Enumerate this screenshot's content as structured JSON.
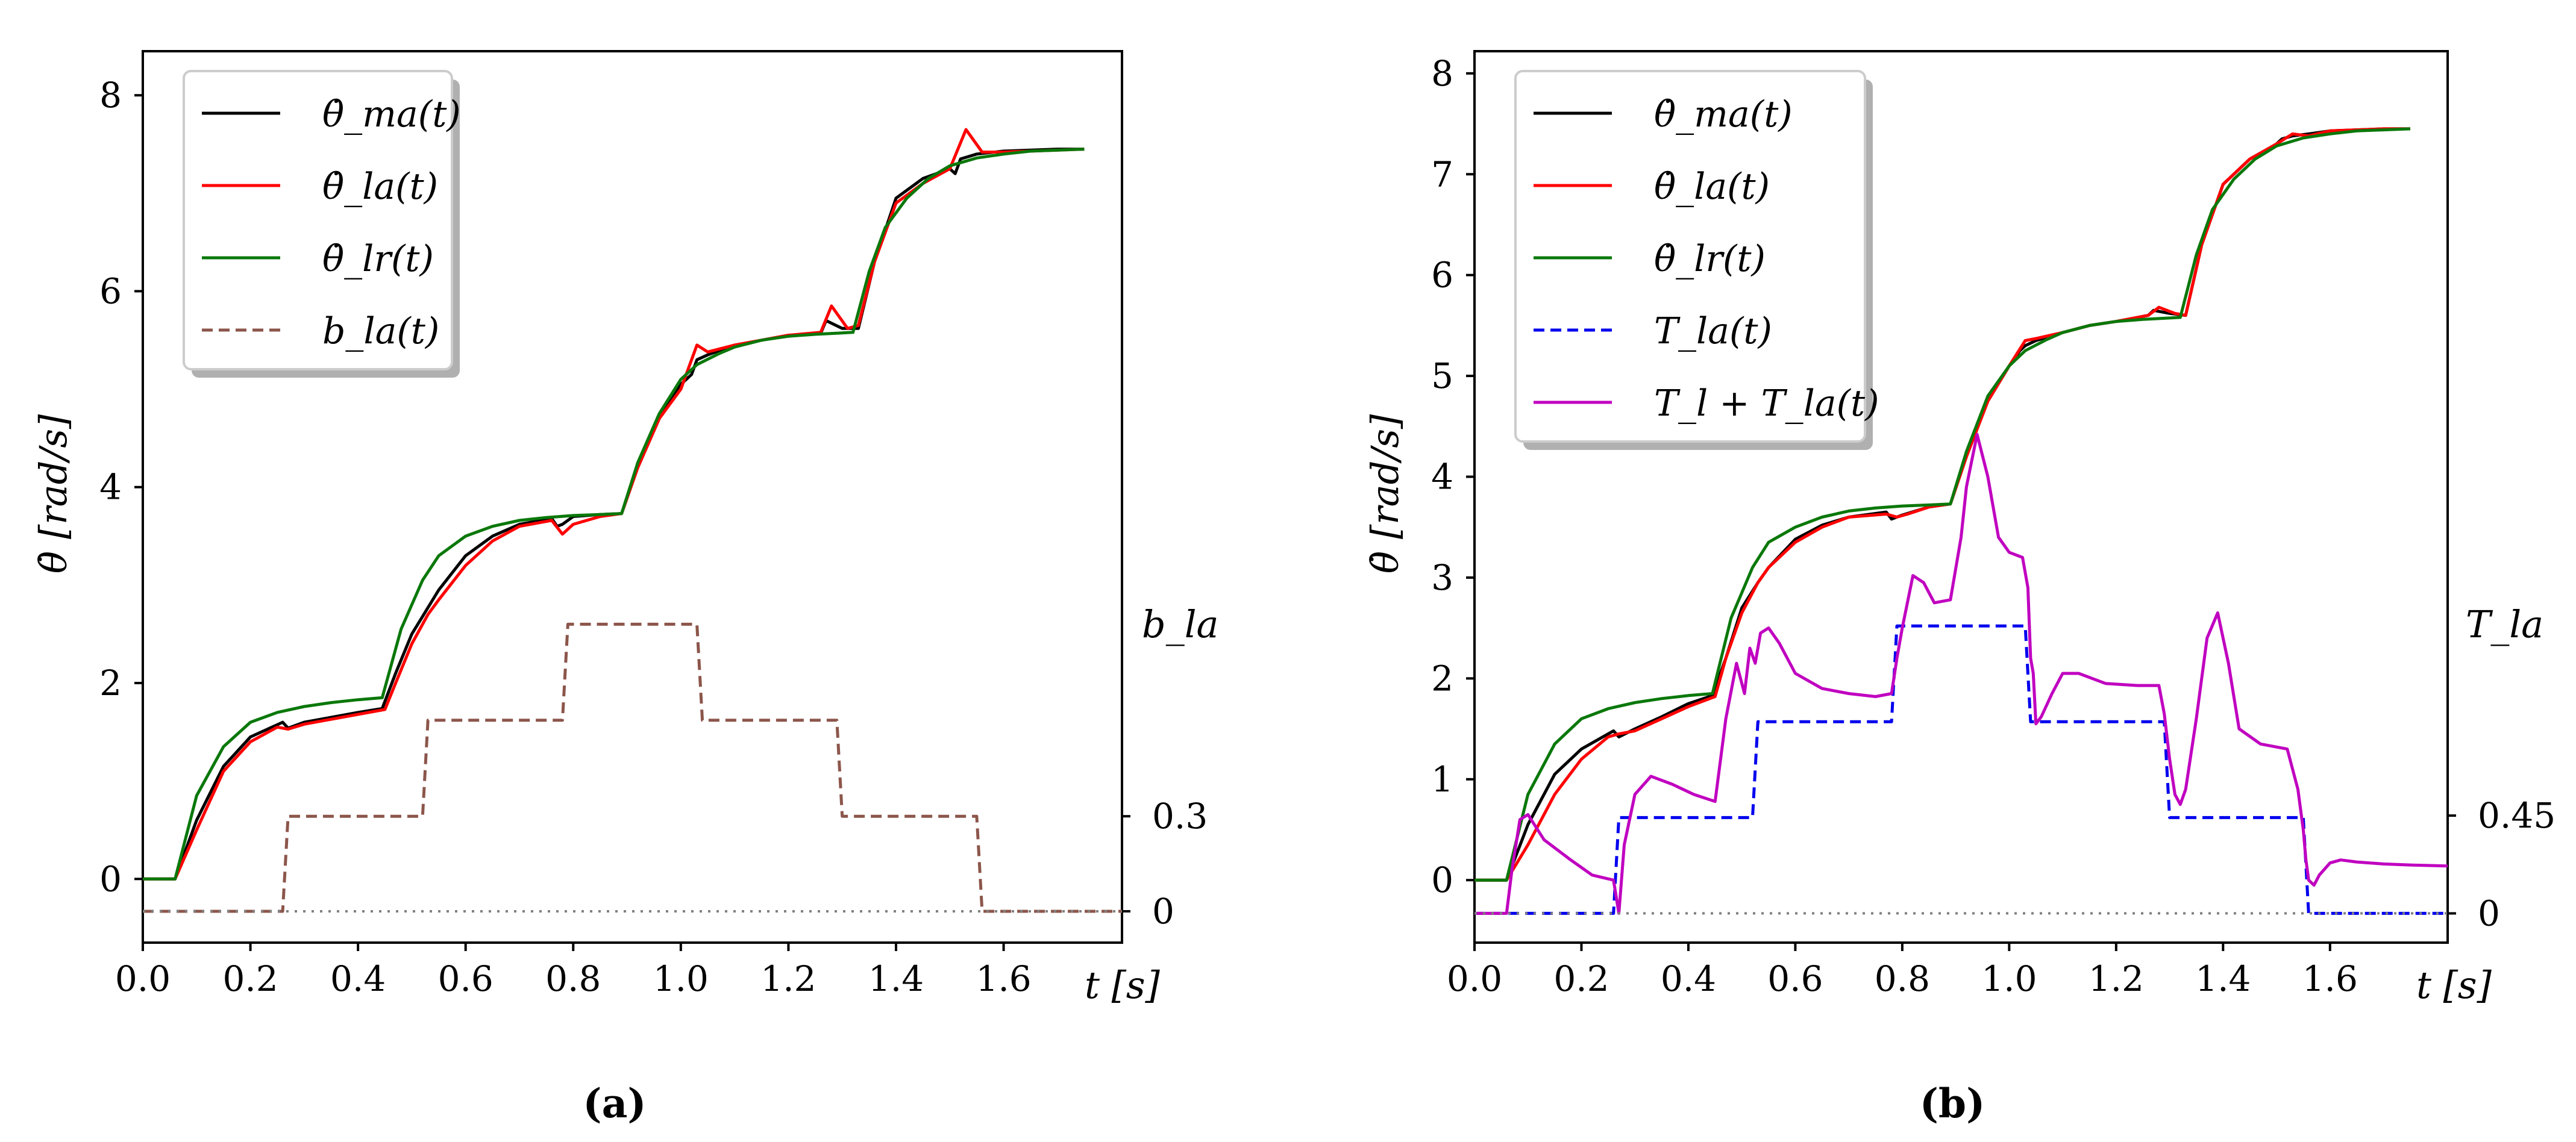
{
  "chart_data": [
    {
      "panel": "a",
      "caption": "(a)",
      "type": "line",
      "xlabel": "t [s]",
      "ylabel": "θ̇ [rad/s]",
      "xlim": [
        0.0,
        1.82
      ],
      "ylim": [
        -0.65,
        8.45
      ],
      "x_ticks": [
        "0.0",
        "0.2",
        "0.4",
        "0.6",
        "0.8",
        "1.0",
        "1.2",
        "1.4",
        "1.6"
      ],
      "y_ticks": [
        "0",
        "2",
        "4",
        "6",
        "8"
      ],
      "right_axis": {
        "label": "b_la",
        "ticks": [
          "0",
          "0.3"
        ],
        "zero_at_left": -0.33,
        "scale": 1.65
      },
      "legend": {
        "position": "top-left",
        "entries": [
          "θ̇_ma(t)",
          "θ̇_la(t)",
          "θ̇_lr(t)",
          "b_la(t)"
        ]
      },
      "series": [
        {
          "name": "θ̇_ma(t)",
          "color": "#000000",
          "style": "solid",
          "x": [
            0.0,
            0.06,
            0.1,
            0.15,
            0.2,
            0.26,
            0.27,
            0.3,
            0.35,
            0.4,
            0.445,
            0.47,
            0.5,
            0.52,
            0.55,
            0.6,
            0.65,
            0.7,
            0.76,
            0.77,
            0.78,
            0.8,
            0.85,
            0.89,
            0.92,
            0.96,
            1.0,
            1.02,
            1.03,
            1.05,
            1.1,
            1.15,
            1.2,
            1.26,
            1.27,
            1.3,
            1.33,
            1.36,
            1.4,
            1.45,
            1.5,
            1.51,
            1.52,
            1.55,
            1.6,
            1.65,
            1.7,
            1.75
          ],
          "y": [
            0.0,
            0.0,
            0.6,
            1.15,
            1.45,
            1.6,
            1.54,
            1.6,
            1.65,
            1.7,
            1.74,
            2.1,
            2.5,
            2.68,
            2.95,
            3.3,
            3.5,
            3.62,
            3.68,
            3.6,
            3.62,
            3.7,
            3.72,
            3.73,
            4.2,
            4.7,
            5.05,
            5.15,
            5.3,
            5.35,
            5.45,
            5.5,
            5.55,
            5.57,
            5.7,
            5.62,
            5.62,
            6.3,
            6.95,
            7.15,
            7.25,
            7.2,
            7.35,
            7.4,
            7.43,
            7.44,
            7.45,
            7.45
          ]
        },
        {
          "name": "θ̇_la(t)",
          "color": "#ff0000",
          "style": "solid",
          "x": [
            0.0,
            0.06,
            0.1,
            0.15,
            0.2,
            0.25,
            0.27,
            0.3,
            0.35,
            0.4,
            0.45,
            0.47,
            0.5,
            0.53,
            0.55,
            0.6,
            0.65,
            0.7,
            0.76,
            0.78,
            0.8,
            0.85,
            0.89,
            0.92,
            0.96,
            1.0,
            1.03,
            1.05,
            1.1,
            1.15,
            1.2,
            1.26,
            1.28,
            1.31,
            1.33,
            1.36,
            1.4,
            1.45,
            1.5,
            1.53,
            1.56,
            1.6,
            1.65,
            1.7,
            1.75
          ],
          "y": [
            0.0,
            0.0,
            0.5,
            1.1,
            1.4,
            1.55,
            1.53,
            1.58,
            1.63,
            1.68,
            1.73,
            2.0,
            2.4,
            2.7,
            2.85,
            3.2,
            3.45,
            3.6,
            3.66,
            3.52,
            3.62,
            3.7,
            3.73,
            4.2,
            4.7,
            5.0,
            5.45,
            5.38,
            5.45,
            5.5,
            5.55,
            5.58,
            5.85,
            5.62,
            5.65,
            6.3,
            6.9,
            7.1,
            7.25,
            7.65,
            7.42,
            7.42,
            7.43,
            7.44,
            7.45
          ]
        },
        {
          "name": "θ̇_lr(t)",
          "color": "#0a780a",
          "style": "solid",
          "x": [
            0.0,
            0.06,
            0.1,
            0.15,
            0.2,
            0.25,
            0.3,
            0.35,
            0.4,
            0.445,
            0.48,
            0.52,
            0.55,
            0.6,
            0.65,
            0.7,
            0.75,
            0.8,
            0.85,
            0.89,
            0.92,
            0.96,
            1.0,
            1.03,
            1.07,
            1.1,
            1.15,
            1.2,
            1.25,
            1.32,
            1.35,
            1.38,
            1.42,
            1.46,
            1.5,
            1.55,
            1.6,
            1.65,
            1.7,
            1.75
          ],
          "y": [
            0.0,
            0.0,
            0.85,
            1.35,
            1.6,
            1.7,
            1.76,
            1.8,
            1.83,
            1.85,
            2.55,
            3.05,
            3.3,
            3.5,
            3.6,
            3.66,
            3.69,
            3.71,
            3.72,
            3.73,
            4.25,
            4.75,
            5.1,
            5.25,
            5.36,
            5.43,
            5.5,
            5.54,
            5.56,
            5.58,
            6.2,
            6.65,
            6.95,
            7.15,
            7.28,
            7.36,
            7.4,
            7.43,
            7.44,
            7.45
          ]
        },
        {
          "name": "b_la(t)",
          "color": "#8c564b",
          "style": "dashed",
          "x": [
            0.0,
            0.26,
            0.27,
            0.52,
            0.53,
            0.78,
            0.79,
            1.03,
            1.04,
            1.29,
            1.3,
            1.55,
            1.56,
            1.82
          ],
          "y": [
            -0.33,
            -0.33,
            0.64,
            0.64,
            1.62,
            1.62,
            2.6,
            2.6,
            1.62,
            1.62,
            0.64,
            0.64,
            -0.33,
            -0.33
          ]
        },
        {
          "name": "zero-ref",
          "color": "#808080",
          "style": "dotted",
          "x": [
            0.0,
            1.82
          ],
          "y": [
            -0.33,
            -0.33
          ]
        }
      ]
    },
    {
      "panel": "b",
      "caption": "(b)",
      "type": "line",
      "xlabel": "t [s]",
      "ylabel": "θ̇ [rad/s]",
      "xlim": [
        0.0,
        1.82
      ],
      "ylim": [
        -0.62,
        8.22
      ],
      "x_ticks": [
        "0.0",
        "0.2",
        "0.4",
        "0.6",
        "0.8",
        "1.0",
        "1.2",
        "1.4",
        "1.6"
      ],
      "y_ticks": [
        "0",
        "1",
        "2",
        "3",
        "4",
        "5",
        "6",
        "7",
        "8"
      ],
      "right_axis": {
        "label": "T_la",
        "ticks": [
          "0",
          "0.45"
        ],
        "zero_at_left": -0.33,
        "scale": 1.1
      },
      "legend": {
        "position": "top-left",
        "entries": [
          "θ̇_ma(t)",
          "θ̇_la(t)",
          "θ̇_lr(t)",
          "T_la(t)",
          "T_l + T_la(t)"
        ]
      },
      "series": [
        {
          "name": "θ̇_ma(t)",
          "color": "#000000",
          "style": "solid",
          "x": [
            0.0,
            0.06,
            0.1,
            0.15,
            0.2,
            0.26,
            0.27,
            0.3,
            0.35,
            0.4,
            0.445,
            0.47,
            0.5,
            0.53,
            0.55,
            0.6,
            0.65,
            0.7,
            0.77,
            0.78,
            0.8,
            0.85,
            0.89,
            0.92,
            0.96,
            1.0,
            1.02,
            1.03,
            1.05,
            1.1,
            1.15,
            1.2,
            1.26,
            1.27,
            1.3,
            1.33,
            1.36,
            1.4,
            1.45,
            1.5,
            1.51,
            1.53,
            1.56,
            1.6,
            1.65,
            1.7,
            1.75
          ],
          "y": [
            0.0,
            0.0,
            0.55,
            1.05,
            1.3,
            1.48,
            1.42,
            1.5,
            1.62,
            1.75,
            1.83,
            2.2,
            2.7,
            2.95,
            3.1,
            3.38,
            3.52,
            3.6,
            3.65,
            3.58,
            3.62,
            3.7,
            3.73,
            4.2,
            4.75,
            5.1,
            5.25,
            5.3,
            5.35,
            5.43,
            5.5,
            5.54,
            5.6,
            5.65,
            5.62,
            5.6,
            6.3,
            6.9,
            7.15,
            7.3,
            7.35,
            7.38,
            7.4,
            7.43,
            7.44,
            7.45,
            7.45
          ]
        },
        {
          "name": "θ̇_la(t)",
          "color": "#ff0000",
          "style": "solid",
          "x": [
            0.0,
            0.06,
            0.1,
            0.15,
            0.2,
            0.25,
            0.27,
            0.3,
            0.35,
            0.4,
            0.45,
            0.47,
            0.5,
            0.53,
            0.55,
            0.6,
            0.65,
            0.7,
            0.77,
            0.79,
            0.81,
            0.85,
            0.89,
            0.92,
            0.96,
            1.0,
            1.03,
            1.05,
            1.1,
            1.15,
            1.2,
            1.26,
            1.28,
            1.31,
            1.33,
            1.36,
            1.4,
            1.45,
            1.5,
            1.53,
            1.56,
            1.6,
            1.65,
            1.7,
            1.75
          ],
          "y": [
            0.0,
            0.0,
            0.35,
            0.85,
            1.2,
            1.42,
            1.45,
            1.48,
            1.6,
            1.72,
            1.82,
            2.2,
            2.65,
            2.95,
            3.1,
            3.35,
            3.5,
            3.6,
            3.63,
            3.6,
            3.63,
            3.7,
            3.73,
            4.2,
            4.75,
            5.1,
            5.35,
            5.37,
            5.43,
            5.5,
            5.54,
            5.6,
            5.68,
            5.62,
            5.6,
            6.3,
            6.9,
            7.15,
            7.3,
            7.4,
            7.38,
            7.43,
            7.44,
            7.45,
            7.45
          ]
        },
        {
          "name": "θ̇_lr(t)",
          "color": "#0a780a",
          "style": "solid",
          "x": [
            0.0,
            0.06,
            0.1,
            0.15,
            0.2,
            0.25,
            0.3,
            0.35,
            0.4,
            0.445,
            0.48,
            0.52,
            0.55,
            0.6,
            0.65,
            0.7,
            0.75,
            0.8,
            0.85,
            0.89,
            0.92,
            0.96,
            1.0,
            1.03,
            1.07,
            1.1,
            1.15,
            1.2,
            1.25,
            1.32,
            1.35,
            1.38,
            1.42,
            1.46,
            1.5,
            1.55,
            1.6,
            1.65,
            1.7,
            1.75
          ],
          "y": [
            0.0,
            0.0,
            0.85,
            1.35,
            1.6,
            1.7,
            1.76,
            1.8,
            1.83,
            1.85,
            2.6,
            3.1,
            3.35,
            3.5,
            3.6,
            3.66,
            3.69,
            3.71,
            3.72,
            3.73,
            4.25,
            4.8,
            5.1,
            5.25,
            5.36,
            5.43,
            5.5,
            5.54,
            5.56,
            5.58,
            6.2,
            6.65,
            6.95,
            7.15,
            7.28,
            7.36,
            7.4,
            7.43,
            7.44,
            7.45
          ]
        },
        {
          "name": "T_la(t)",
          "color": "#0000ee",
          "style": "dashed",
          "x": [
            0.0,
            0.26,
            0.27,
            0.52,
            0.53,
            0.78,
            0.79,
            1.03,
            1.04,
            1.29,
            1.3,
            1.55,
            1.56,
            1.82
          ],
          "y": [
            -0.33,
            -0.33,
            0.62,
            0.62,
            1.57,
            1.57,
            2.52,
            2.52,
            1.57,
            1.57,
            0.62,
            0.62,
            -0.33,
            -0.33
          ]
        },
        {
          "name": "T_l + T_la(t)",
          "color": "#c000c0",
          "style": "solid",
          "x": [
            0.0,
            0.06,
            0.07,
            0.085,
            0.1,
            0.13,
            0.18,
            0.22,
            0.26,
            0.27,
            0.28,
            0.3,
            0.33,
            0.37,
            0.41,
            0.45,
            0.47,
            0.49,
            0.505,
            0.515,
            0.525,
            0.535,
            0.55,
            0.57,
            0.6,
            0.65,
            0.7,
            0.75,
            0.78,
            0.79,
            0.8,
            0.82,
            0.84,
            0.86,
            0.89,
            0.91,
            0.92,
            0.94,
            0.96,
            0.98,
            1.0,
            1.025,
            1.035,
            1.04,
            1.045,
            1.05,
            1.06,
            1.08,
            1.1,
            1.13,
            1.18,
            1.24,
            1.28,
            1.29,
            1.3,
            1.31,
            1.32,
            1.33,
            1.35,
            1.37,
            1.39,
            1.41,
            1.43,
            1.47,
            1.52,
            1.54,
            1.55,
            1.555,
            1.56,
            1.57,
            1.58,
            1.6,
            1.62,
            1.65,
            1.7,
            1.75,
            1.82
          ],
          "y": [
            -0.33,
            -0.33,
            0.1,
            0.6,
            0.65,
            0.4,
            0.2,
            0.05,
            0.0,
            -0.33,
            0.35,
            0.85,
            1.03,
            0.95,
            0.85,
            0.78,
            1.6,
            2.15,
            1.85,
            2.3,
            2.15,
            2.45,
            2.5,
            2.35,
            2.05,
            1.9,
            1.85,
            1.82,
            1.85,
            2.2,
            2.5,
            3.02,
            2.95,
            2.75,
            2.78,
            3.4,
            3.9,
            4.42,
            4.0,
            3.4,
            3.25,
            3.2,
            2.9,
            2.2,
            2.05,
            1.55,
            1.62,
            1.85,
            2.05,
            2.05,
            1.95,
            1.93,
            1.93,
            1.65,
            1.2,
            0.85,
            0.75,
            0.9,
            1.6,
            2.4,
            2.65,
            2.15,
            1.5,
            1.35,
            1.3,
            0.9,
            0.5,
            0.2,
            0.0,
            -0.05,
            0.05,
            0.17,
            0.2,
            0.18,
            0.16,
            0.15,
            0.14
          ]
        },
        {
          "name": "zero-ref",
          "color": "#808080",
          "style": "dotted",
          "x": [
            0.0,
            1.82
          ],
          "y": [
            -0.33,
            -0.33
          ]
        }
      ]
    }
  ]
}
